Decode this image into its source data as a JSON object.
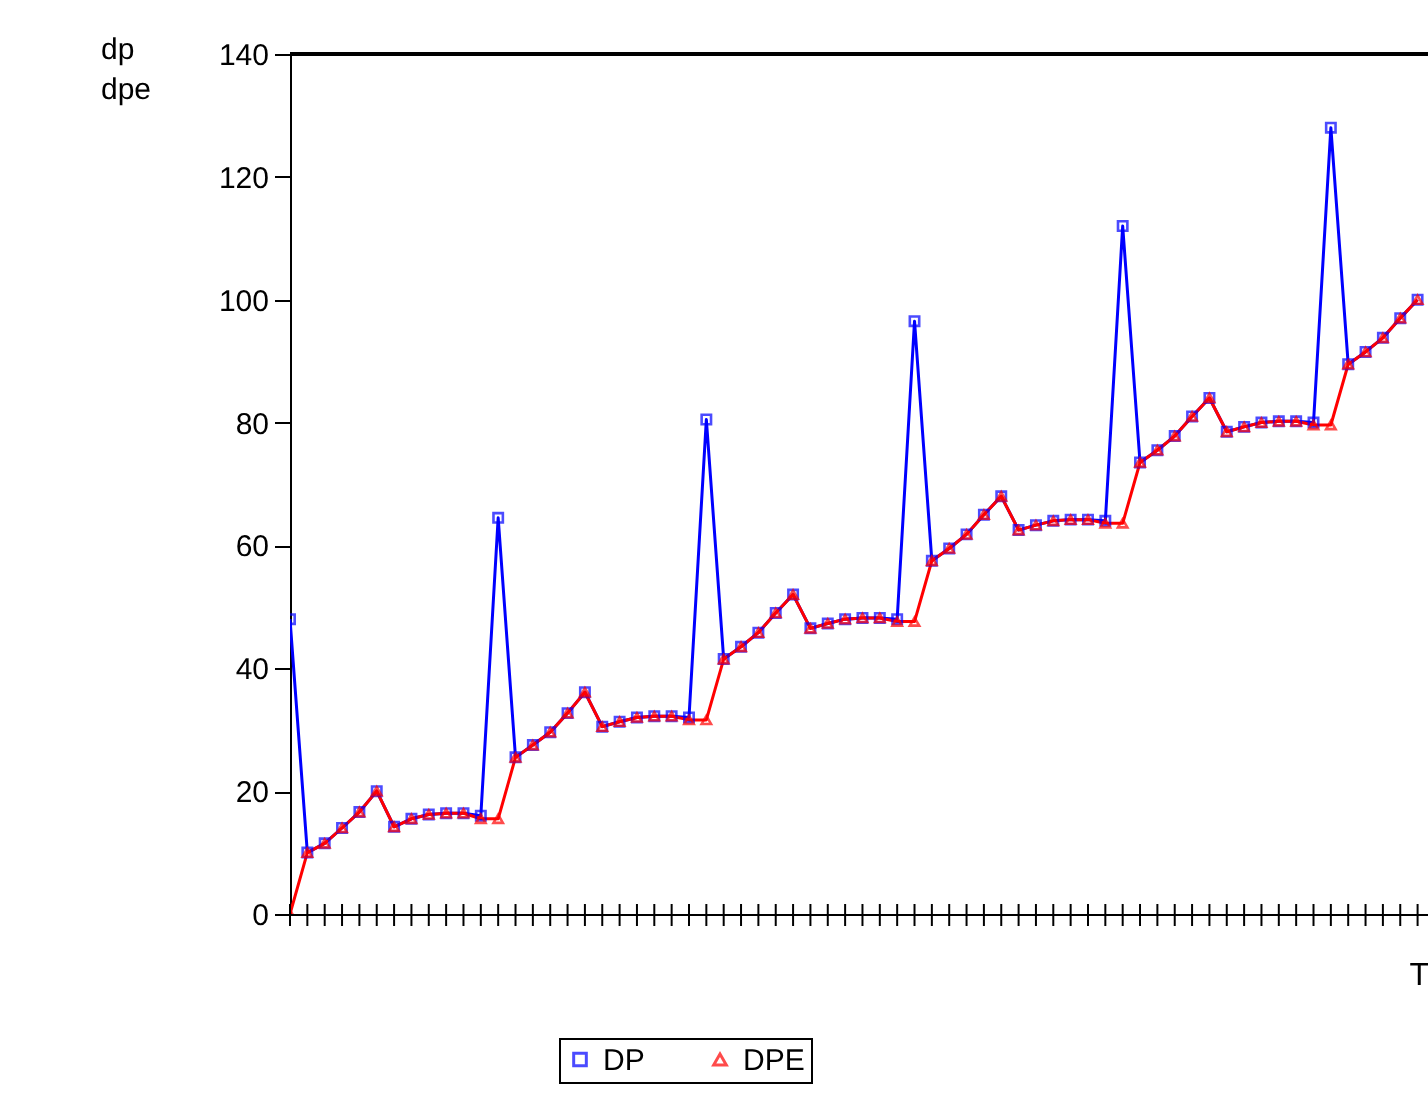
{
  "chart_data": {
    "type": "line",
    "xlabel": "T",
    "ylabel": "dp\ndpe",
    "categories": [
      null,
      null,
      null,
      null,
      null,
      null,
      null,
      null,
      null,
      null,
      null,
      null,
      null,
      null,
      null,
      null,
      null,
      null,
      null,
      null,
      null,
      null,
      null,
      null,
      null,
      null,
      null,
      null,
      null,
      null,
      null,
      null,
      null,
      null,
      null,
      null,
      null,
      null,
      null,
      null,
      null,
      null,
      null,
      null,
      null,
      null,
      null,
      null,
      null,
      null,
      null,
      null,
      null,
      null,
      null,
      null,
      null,
      null,
      null,
      null,
      null,
      null,
      null,
      null,
      null,
      null
    ],
    "series": [
      {
        "name": "DP",
        "color": "#0000ff",
        "marker": "square",
        "values": [
          48,
          10,
          11.5,
          14,
          16.6,
          20,
          14.2,
          15.5,
          16.2,
          16.4,
          16.4,
          16,
          64.5,
          25.5,
          27.5,
          29.6,
          32.7,
          36.1,
          30.5,
          31.3,
          32,
          32.2,
          32.2,
          32,
          80.5,
          41.5,
          43.5,
          45.8,
          49,
          52,
          46.5,
          47.3,
          48,
          48.2,
          48.2,
          48,
          96.5,
          57.5,
          59.5,
          61.8,
          65,
          68,
          62.5,
          63.3,
          64,
          64.2,
          64.2,
          64,
          112,
          73.5,
          75.5,
          77.8,
          81,
          84,
          78.5,
          79.3,
          80,
          80.2,
          80.2,
          80,
          128,
          89.5,
          91.5,
          93.8,
          97,
          100
        ]
      },
      {
        "name": "DPE",
        "color": "#ff0000",
        "marker": "triangle",
        "values": [
          0,
          10,
          11.5,
          14,
          16.6,
          20,
          14.2,
          15.5,
          16.2,
          16.4,
          16.4,
          15.5,
          15.5,
          25.5,
          27.5,
          29.6,
          32.7,
          36.1,
          30.5,
          31.3,
          32,
          32.2,
          32.2,
          31.6,
          31.6,
          41.5,
          43.5,
          45.8,
          49,
          52,
          46.5,
          47.3,
          48,
          48.2,
          48.2,
          47.6,
          47.6,
          57.5,
          59.5,
          61.8,
          65,
          68,
          62.5,
          63.3,
          64,
          64.2,
          64.2,
          63.6,
          63.6,
          73.5,
          75.5,
          77.8,
          81,
          84,
          78.5,
          79.3,
          80,
          80.2,
          80.2,
          79.6,
          79.6,
          89.5,
          91.5,
          93.8,
          97,
          100
        ]
      }
    ],
    "ylim": [
      0,
      140
    ],
    "yticks": [
      0,
      20,
      40,
      60,
      80,
      100,
      120,
      140
    ],
    "grid": false,
    "legend": "bottom",
    "tick_labels": "y",
    "line_style": "solid"
  }
}
